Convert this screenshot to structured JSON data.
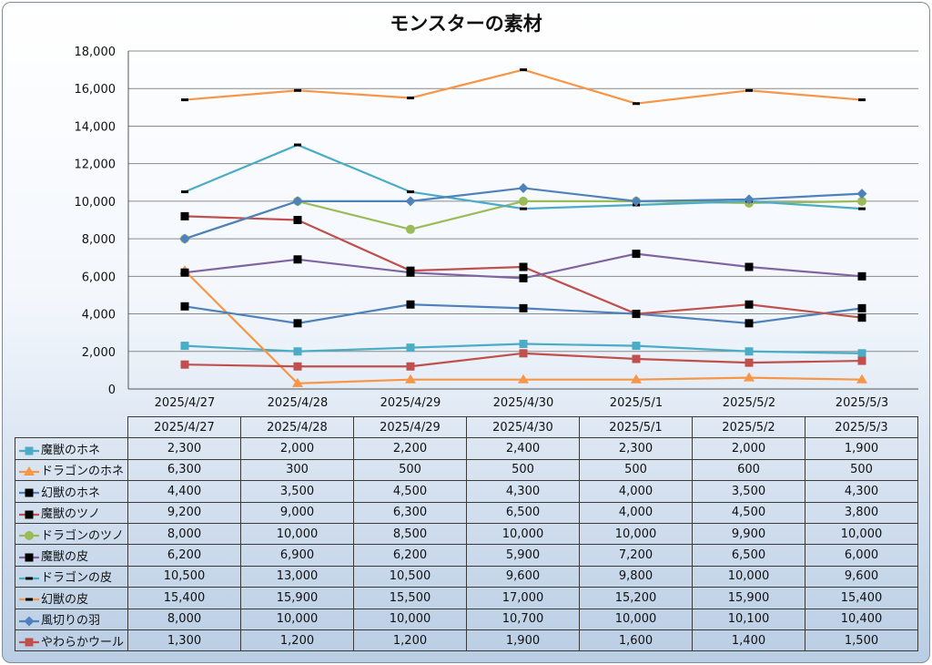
{
  "chart_data": {
    "type": "line",
    "title": "モンスターの素材",
    "categories": [
      "2025/4/27",
      "2025/4/28",
      "2025/4/29",
      "2025/4/30",
      "2025/5/1",
      "2025/5/2",
      "2025/5/3"
    ],
    "yticks": [
      "0",
      "2,000",
      "4,000",
      "6,000",
      "8,000",
      "10,000",
      "12,000",
      "14,000",
      "16,000",
      "18,000"
    ],
    "ylim": [
      0,
      18000
    ],
    "grid": true,
    "legend": "data-table",
    "series": [
      {
        "name": "魔獣のホネ",
        "color": "#4bacc6",
        "marker": "square",
        "values": [
          2300,
          2000,
          2200,
          2400,
          2300,
          2000,
          1900
        ],
        "labels": [
          "2,300",
          "2,000",
          "2,200",
          "2,400",
          "2,300",
          "2,000",
          "1,900"
        ]
      },
      {
        "name": "ドラゴンのホネ",
        "color": "#f79646",
        "marker": "triangle",
        "values": [
          6300,
          300,
          500,
          500,
          500,
          600,
          500
        ],
        "labels": [
          "6,300",
          "300",
          "500",
          "500",
          "500",
          "600",
          "500"
        ]
      },
      {
        "name": "幻獣のホネ",
        "color": "#4f81bd",
        "marker": "square-black",
        "values": [
          4400,
          3500,
          4500,
          4300,
          4000,
          3500,
          4300
        ],
        "labels": [
          "4,400",
          "3,500",
          "4,500",
          "4,300",
          "4,000",
          "3,500",
          "4,300"
        ]
      },
      {
        "name": "魔獣のツノ",
        "color": "#c0504d",
        "marker": "square-black",
        "values": [
          9200,
          9000,
          6300,
          6500,
          4000,
          4500,
          3800
        ],
        "labels": [
          "9,200",
          "9,000",
          "6,300",
          "6,500",
          "4,000",
          "4,500",
          "3,800"
        ]
      },
      {
        "name": "ドラゴンのツノ",
        "color": "#9bbb59",
        "marker": "circle",
        "values": [
          8000,
          10000,
          8500,
          10000,
          10000,
          9900,
          10000
        ],
        "labels": [
          "8,000",
          "10,000",
          "8,500",
          "10,000",
          "10,000",
          "9,900",
          "10,000"
        ]
      },
      {
        "name": "魔獣の皮",
        "color": "#8064a2",
        "marker": "square-black",
        "values": [
          6200,
          6900,
          6200,
          5900,
          7200,
          6500,
          6000
        ],
        "labels": [
          "6,200",
          "6,900",
          "6,200",
          "5,900",
          "7,200",
          "6,500",
          "6,000"
        ]
      },
      {
        "name": "ドラゴンの皮",
        "color": "#4bacc6",
        "marker": "dash",
        "values": [
          10500,
          13000,
          10500,
          9600,
          9800,
          10000,
          9600
        ],
        "labels": [
          "10,500",
          "13,000",
          "10,500",
          "9,600",
          "9,800",
          "10,000",
          "9,600"
        ]
      },
      {
        "name": "幻獣の皮",
        "color": "#f79646",
        "marker": "dash",
        "values": [
          15400,
          15900,
          15500,
          17000,
          15200,
          15900,
          15400
        ],
        "labels": [
          "15,400",
          "15,900",
          "15,500",
          "17,000",
          "15,200",
          "15,900",
          "15,400"
        ]
      },
      {
        "name": "風切りの羽",
        "color": "#4f81bd",
        "marker": "diamond",
        "values": [
          8000,
          10000,
          10000,
          10700,
          10000,
          10100,
          10400
        ],
        "labels": [
          "8,000",
          "10,000",
          "10,000",
          "10,700",
          "10,000",
          "10,100",
          "10,400"
        ]
      },
      {
        "name": "やわらかウール",
        "color": "#c0504d",
        "marker": "square",
        "values": [
          1300,
          1200,
          1200,
          1900,
          1600,
          1400,
          1500
        ],
        "labels": [
          "1,300",
          "1,200",
          "1,200",
          "1,900",
          "1,600",
          "1,400",
          "1,500"
        ]
      }
    ]
  }
}
